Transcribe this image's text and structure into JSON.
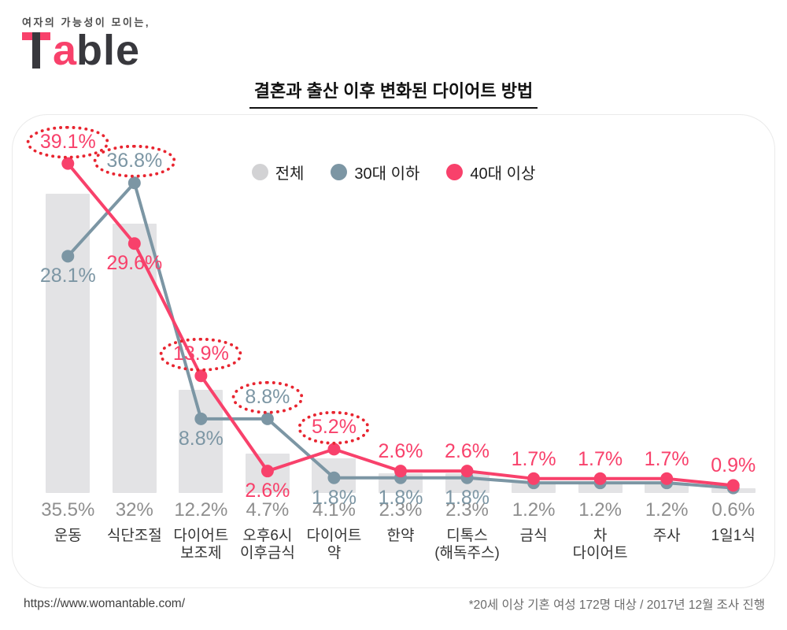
{
  "logo": {
    "tagline": "여자의 가능성이 모이는,",
    "brand": "Table",
    "brand_letter_a": "a",
    "brand_suffix": "ble"
  },
  "chart_data": {
    "type": "bar+line",
    "title": "결혼과 출산 이후 변화된 다이어트 방법",
    "categories": [
      "운동",
      "식단조절",
      "다이어트\n보조제",
      "오후6시\n이후금식",
      "다이어트\n약",
      "한약",
      "디톡스\n(해독주스)",
      "금식",
      "차\n다이어트",
      "주사",
      "1일1식"
    ],
    "ylim": [
      0,
      42
    ],
    "legend_position": "top-center",
    "grid": false,
    "highlight_color": "#e82530",
    "bar_series": {
      "name": "전체",
      "color": "#e3e3e5",
      "label_color": "#8e8e8e",
      "values": [
        35.5,
        32,
        12.2,
        4.7,
        4.1,
        2.3,
        2.3,
        1.2,
        1.2,
        1.2,
        0.6
      ],
      "labels": [
        "35.5%",
        "32%",
        "12.2%",
        "4.7%",
        "4.1%",
        "2.3%",
        "2.3%",
        "1.2%",
        "1.2%",
        "1.2%",
        "0.6%"
      ]
    },
    "line_series": [
      {
        "name": "30대 이하",
        "color": "#7c96a4",
        "values": [
          28.1,
          36.8,
          8.8,
          8.8,
          1.8,
          1.8,
          1.8,
          1.2,
          1.2,
          1.2,
          0.6
        ],
        "points": [
          {
            "label": "28.1%",
            "pos": "below",
            "circled": false
          },
          {
            "label": "36.8%",
            "pos": "above",
            "circled": true
          },
          {
            "label": "8.8%",
            "pos": "below",
            "circled": false
          },
          {
            "label": "8.8%",
            "pos": "above",
            "circled": true
          },
          {
            "label": "1.8%",
            "pos": "below",
            "circled": false
          },
          {
            "label": "1.8%",
            "pos": "below",
            "circled": false
          },
          {
            "label": "1.8%",
            "pos": "below",
            "circled": false
          },
          {
            "label": null
          },
          {
            "label": null
          },
          {
            "label": null
          },
          {
            "label": null
          }
        ]
      },
      {
        "name": "40대 이상",
        "color": "#f8416b",
        "values": [
          39.1,
          29.6,
          13.9,
          2.6,
          5.2,
          2.6,
          2.6,
          1.7,
          1.7,
          1.7,
          0.9
        ],
        "points": [
          {
            "label": "39.1%",
            "pos": "above",
            "circled": true
          },
          {
            "label": "29.6%",
            "pos": "below",
            "circled": false
          },
          {
            "label": "13.9%",
            "pos": "above",
            "circled": true
          },
          {
            "label": "2.6%",
            "pos": "below",
            "circled": false
          },
          {
            "label": "5.2%",
            "pos": "above",
            "circled": true
          },
          {
            "label": "2.6%",
            "pos": "above",
            "circled": false
          },
          {
            "label": "2.6%",
            "pos": "above",
            "circled": false
          },
          {
            "label": "1.7%",
            "pos": "above",
            "circled": false
          },
          {
            "label": "1.7%",
            "pos": "above",
            "circled": false
          },
          {
            "label": "1.7%",
            "pos": "above",
            "circled": false
          },
          {
            "label": "0.9%",
            "pos": "above",
            "circled": false
          }
        ]
      }
    ],
    "legend": [
      {
        "label": "전체",
        "color": "#d2d2d4"
      },
      {
        "label": "30대 이하",
        "color": "#7c96a4"
      },
      {
        "label": "40대 이상",
        "color": "#f8416b"
      }
    ]
  },
  "footer": {
    "left": "https://www.womantable.com/",
    "right": "*20세 이상 기혼 여성 172명 대상 / 2017년 12월 조사 진행"
  }
}
